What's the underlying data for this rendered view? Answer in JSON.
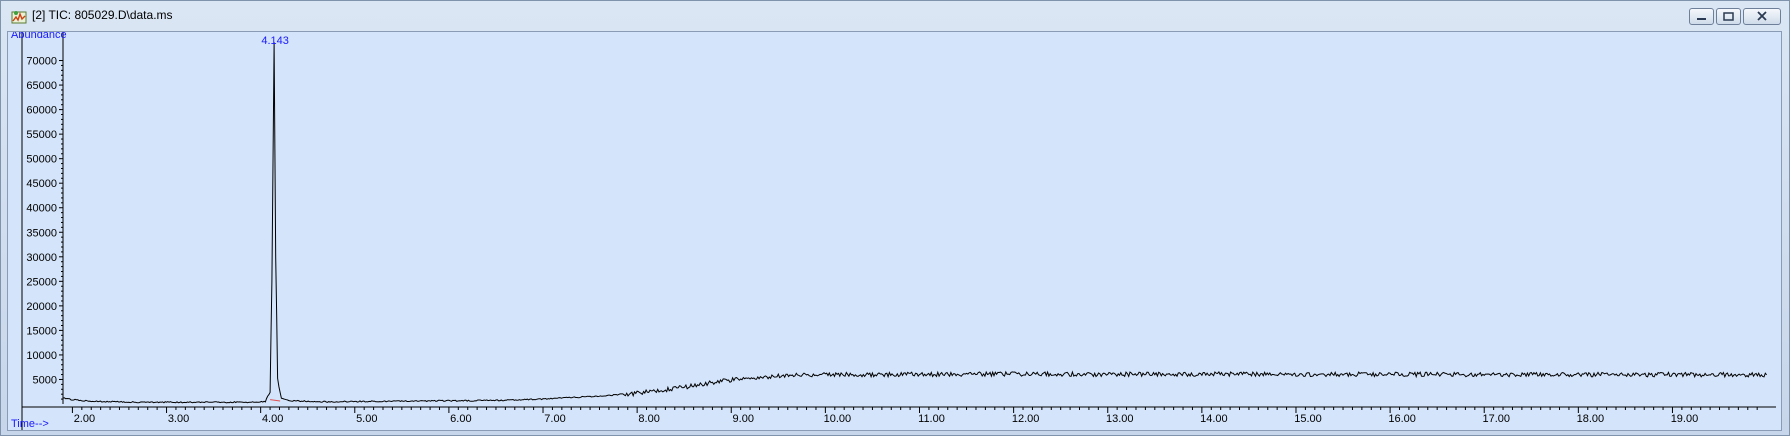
{
  "window": {
    "title": "[2] TIC: 805029.D\\data.ms",
    "controls": {
      "minimize": "minimize-icon",
      "restore": "restore-icon",
      "close": "close-icon"
    }
  },
  "chart_data": {
    "type": "line",
    "ylabel": "Abundance",
    "xlabel": "Time-->",
    "xlim": [
      1.9,
      20.1
    ],
    "ylim": [
      0,
      75000
    ],
    "x_ticks": [
      "2.00",
      "3.00",
      "4.00",
      "5.00",
      "6.00",
      "7.00",
      "8.00",
      "9.00",
      "10.00",
      "11.00",
      "12.00",
      "13.00",
      "14.00",
      "15.00",
      "16.00",
      "17.00",
      "18.00",
      "19.00"
    ],
    "y_ticks": [
      "5000",
      "10000",
      "15000",
      "20000",
      "25000",
      "30000",
      "35000",
      "40000",
      "45000",
      "50000",
      "55000",
      "60000",
      "65000",
      "70000"
    ],
    "peak_labels": [
      {
        "x": 4.143,
        "label": "4.143"
      }
    ],
    "series": [
      {
        "x": [
          1.9,
          2.0,
          2.1,
          2.3,
          2.6,
          3.0,
          3.5,
          3.9,
          4.05,
          4.1,
          4.12,
          4.143,
          4.16,
          4.18,
          4.22,
          4.3,
          4.6,
          5.0,
          5.5,
          6.0,
          6.5,
          7.0,
          7.5,
          8.0,
          8.3,
          8.6,
          8.8,
          9.0,
          9.2,
          9.5,
          9.8,
          10.0,
          10.5,
          11.0,
          12.0,
          13.0,
          14.0,
          15.0,
          16.0,
          17.0,
          18.0,
          19.0,
          20.0
        ],
        "y": [
          1200,
          900,
          700,
          500,
          400,
          350,
          350,
          360,
          500,
          2500,
          25000,
          74000,
          30000,
          5000,
          1200,
          700,
          450,
          500,
          600,
          650,
          750,
          1000,
          1500,
          2200,
          2900,
          3700,
          4400,
          4900,
          5400,
          5700,
          5900,
          6000,
          6000,
          6050,
          6100,
          6050,
          6100,
          6050,
          6050,
          6000,
          6000,
          6000,
          5950
        ]
      }
    ],
    "line_color": "#000000",
    "background": "#d4e4fa"
  }
}
